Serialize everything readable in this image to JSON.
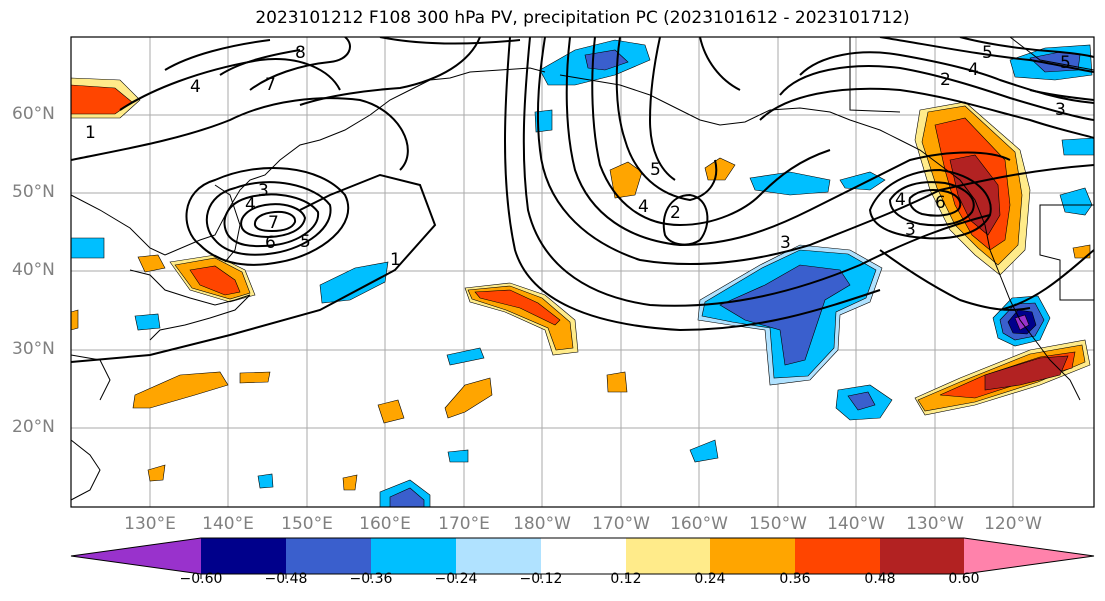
{
  "title": "2023101212 F108 300 hPa PV, precipitation PC (2023101612 - 2023101712)",
  "map": {
    "lat_labels": [
      "60°N",
      "50°N",
      "40°N",
      "30°N",
      "20°N"
    ],
    "lon_labels": [
      "130°E",
      "140°E",
      "150°E",
      "160°E",
      "170°E",
      "180°W",
      "170°W",
      "160°W",
      "150°W",
      "140°W",
      "130°W",
      "120°W"
    ],
    "contour_labels": [
      "1",
      "2",
      "3",
      "4",
      "5",
      "6",
      "7",
      "8"
    ]
  },
  "colorbar": {
    "tick_labels": [
      "−0.60",
      "−0.48",
      "−0.36",
      "−0.24",
      "−0.12",
      "0.12",
      "0.24",
      "0.36",
      "0.48",
      "0.60"
    ],
    "colors": [
      "#9932cc",
      "#00008b",
      "#3a5fcd",
      "#00bfff",
      "#b0e2ff",
      "#ffffff",
      "#ffeb8a",
      "#ffa500",
      "#ff4500",
      "#b22222",
      "#ff82ab"
    ]
  }
}
